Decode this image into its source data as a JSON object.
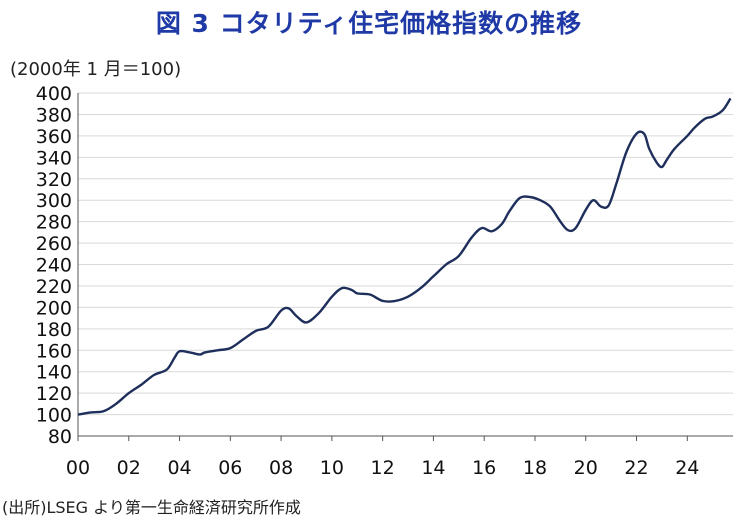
{
  "title": "図 3  コタリティ住宅価格指数の推移",
  "unit_note": "(2000年 1 月＝100)",
  "source_note": "(出所)LSEG より第一生命経済研究所作成",
  "colors": {
    "title": "#1f3aa6",
    "line": "#1f2f5c",
    "grid": "#d9d9d9"
  },
  "chart_data": {
    "type": "line",
    "title": "図 3  コタリティ住宅価格指数の推移",
    "xlabel": "",
    "ylabel": "(2000年 1 月＝100)",
    "ylim": [
      80,
      400
    ],
    "yticks": [
      80,
      100,
      120,
      140,
      160,
      180,
      200,
      220,
      240,
      260,
      280,
      300,
      320,
      340,
      360,
      380,
      400
    ],
    "xlim": [
      2000,
      2025.8
    ],
    "xticks": [
      2000,
      2002,
      2004,
      2006,
      2008,
      2010,
      2012,
      2014,
      2016,
      2018,
      2020,
      2022,
      2024
    ],
    "xtick_labels": [
      "00",
      "02",
      "04",
      "06",
      "08",
      "10",
      "12",
      "14",
      "16",
      "18",
      "20",
      "22",
      "24"
    ],
    "grid": true,
    "series": [
      {
        "x": [
          2000,
          2000.5,
          2001,
          2001.5,
          2002,
          2002.5,
          2003,
          2003.5,
          2003.8,
          2004,
          2004.4,
          2004.8,
          2005,
          2005.5,
          2006,
          2006.5,
          2007,
          2007.5,
          2008,
          2008.3,
          2008.6,
          2009,
          2009.5,
          2010,
          2010.4,
          2010.8,
          2011,
          2011.5,
          2012,
          2012.5,
          2013,
          2013.5,
          2014,
          2014.5,
          2015,
          2015.5,
          2015.9,
          2016.3,
          2016.7,
          2017,
          2017.4,
          2017.8,
          2018.2,
          2018.6,
          2019,
          2019.3,
          2019.6,
          2020,
          2020.3,
          2020.6,
          2020.9,
          2021.2,
          2021.6,
          2022,
          2022.3,
          2022.5,
          2022.8,
          2023,
          2023.2,
          2023.5,
          2024,
          2024.3,
          2024.7,
          2025,
          2025.4,
          2025.7
        ],
        "y": [
          100,
          102,
          103,
          110,
          120,
          128,
          137,
          142,
          153,
          159,
          158,
          156,
          158,
          160,
          162,
          170,
          178,
          182,
          197,
          199,
          192,
          186,
          195,
          210,
          218,
          216,
          213,
          212,
          206,
          206,
          210,
          218,
          229,
          240,
          248,
          265,
          274,
          271,
          278,
          290,
          302,
          303,
          300,
          294,
          280,
          272,
          274,
          291,
          300,
          294,
          295,
          315,
          345,
          362,
          362,
          348,
          335,
          331,
          338,
          348,
          360,
          368,
          376,
          378,
          384,
          395
        ]
      }
    ]
  }
}
